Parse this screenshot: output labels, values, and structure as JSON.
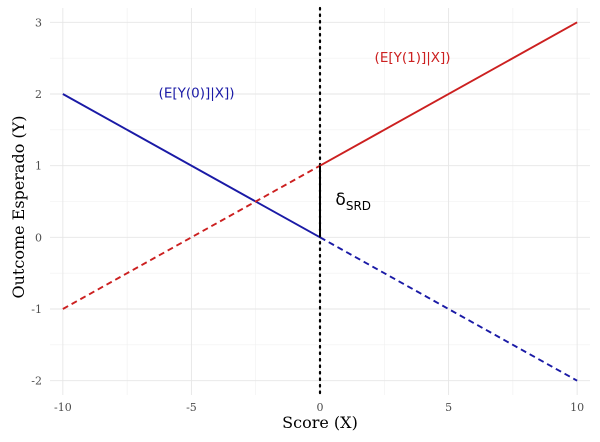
{
  "chart_data": {
    "type": "line",
    "xlabel": "Score (X)",
    "ylabel": "Outcome Esperado (Y)",
    "xlim": [
      -10.5,
      10.5
    ],
    "ylim": [
      -2.2,
      3.2
    ],
    "x_ticks": [
      -10,
      -5,
      0,
      5,
      10
    ],
    "y_ticks": [
      -2,
      -1,
      0,
      1,
      2,
      3
    ],
    "grid": true,
    "cutoff": 0,
    "cutoff_style": "dotted",
    "series": [
      {
        "name": "(E[Y(0)]|X])",
        "color": "#1a1aa6",
        "segments": [
          {
            "x": [
              -10,
              0
            ],
            "y": [
              2,
              0
            ],
            "style": "solid"
          },
          {
            "x": [
              0,
              10
            ],
            "y": [
              0,
              -2
            ],
            "style": "dashed"
          }
        ]
      },
      {
        "name": "(E[Y(1)]|X])",
        "color": "#cc2020",
        "segments": [
          {
            "x": [
              -10,
              0
            ],
            "y": [
              -1,
              1
            ],
            "style": "dashed"
          },
          {
            "x": [
              0,
              10
            ],
            "y": [
              1,
              3
            ],
            "style": "solid"
          }
        ]
      }
    ],
    "annotations": [
      {
        "type": "segment",
        "x": 0,
        "y": [
          0,
          1
        ],
        "color": "#000000"
      },
      {
        "type": "text",
        "text": "δ",
        "subscript": "SRD",
        "x": 0.6,
        "y": 0.45
      }
    ],
    "series_labels": [
      {
        "series": 0,
        "x": -4.8,
        "y": 1.95
      },
      {
        "series": 1,
        "x": 3.6,
        "y": 2.45
      }
    ]
  }
}
